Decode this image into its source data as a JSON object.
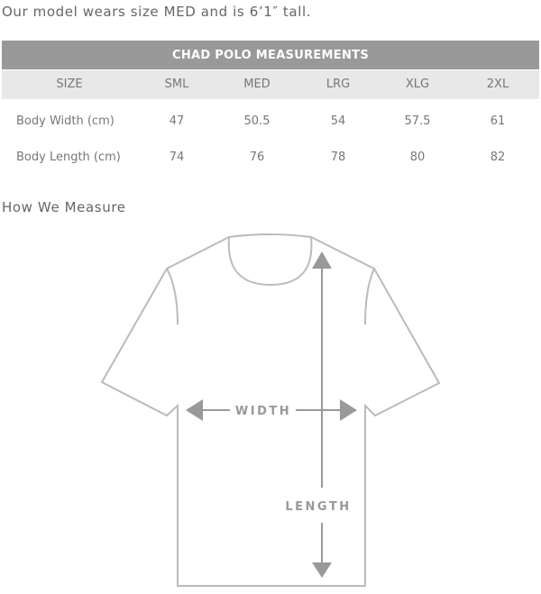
{
  "intro": "Our model wears size MED and is 6’1″ tall.",
  "table": {
    "title": "CHAD POLO MEASUREMENTS",
    "headers": [
      "SIZE",
      "SML",
      "MED",
      "LRG",
      "XLG",
      "2XL"
    ],
    "rows": [
      {
        "label": "Body Width (cm)",
        "values": [
          "47",
          "50.5",
          "54",
          "57.5",
          "61"
        ]
      },
      {
        "label": "Body Length (cm)",
        "values": [
          "74",
          "76",
          "78",
          "80",
          "82"
        ]
      }
    ]
  },
  "how_title": "How We Measure",
  "diagram": {
    "width_label": "WIDTH",
    "length_label": "LENGTH",
    "outline_color": "#bbbbbb",
    "arrow_color": "#999999"
  }
}
